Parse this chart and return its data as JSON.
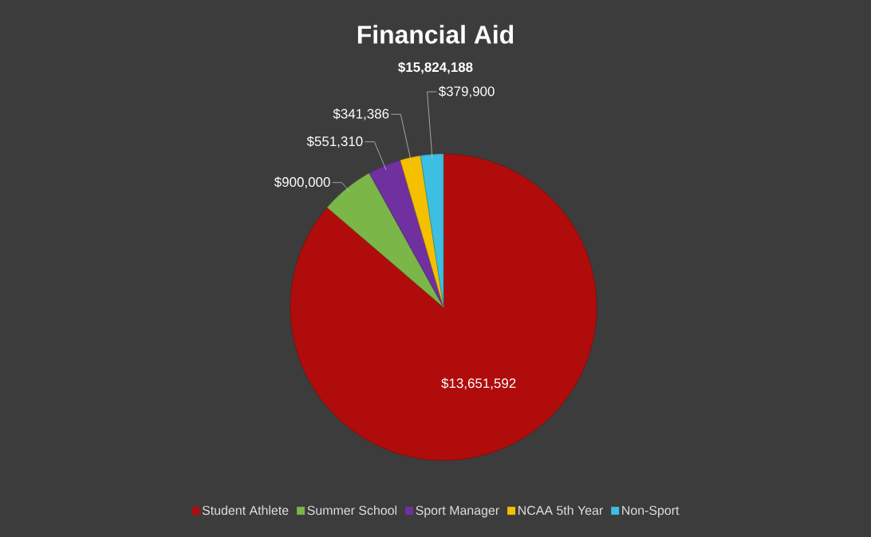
{
  "chart_data": {
    "type": "pie",
    "title": "Financial Aid",
    "subtitle": "$15,824,188",
    "categories": [
      "Student Athlete",
      "Summer School",
      "Sport Manager",
      "NCAA 5th Year",
      "Non-Sport"
    ],
    "values": [
      13651592,
      900000,
      551310,
      341386,
      379900
    ],
    "colors": [
      "#b00c0c",
      "#7ab648",
      "#7030a0",
      "#f5c000",
      "#3cbfe0"
    ],
    "value_labels": [
      "$13,651,592",
      "$900,000",
      "$551,310",
      "$341,386",
      "$379,900"
    ],
    "legend": "bottom"
  }
}
